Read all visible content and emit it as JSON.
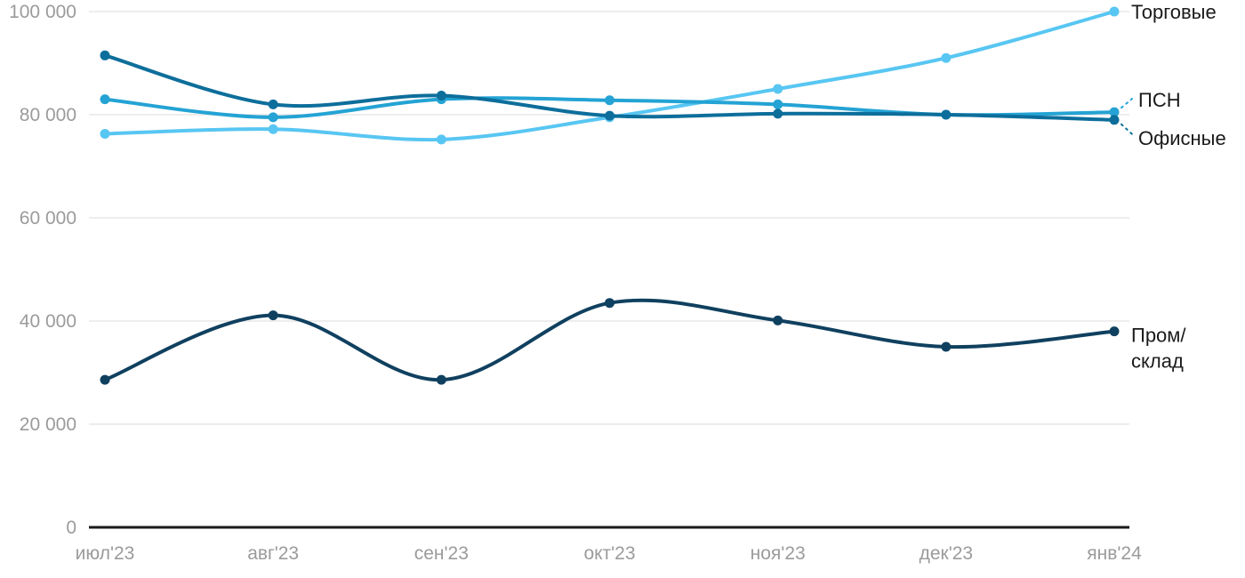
{
  "chart_data": {
    "type": "line",
    "title": "",
    "xlabel": "",
    "ylabel": "",
    "grid": "horizontal",
    "legend_position": "right-direct-labels",
    "categories": [
      "июл'23",
      "авг'23",
      "сен'23",
      "окт'23",
      "ноя'23",
      "дек'23",
      "янв'24"
    ],
    "y_ticks": [
      0,
      20000,
      40000,
      60000,
      80000,
      100000
    ],
    "y_tick_labels": [
      "0",
      "20 000",
      "40 000",
      "60 000",
      "80 000",
      "100 000"
    ],
    "ylim": [
      0,
      100000
    ],
    "series": [
      {
        "id": "prom-sklad",
        "name": "Пром/склад",
        "label_lines": [
          "Пром/",
          "склад"
        ],
        "color": "#10405f",
        "values": [
          28600,
          41100,
          28600,
          43500,
          40100,
          35000,
          38000
        ],
        "leader": false
      },
      {
        "id": "torgovye",
        "name": "Торговые",
        "label_lines": [
          "Торговые"
        ],
        "color": "#58c6f2",
        "values": [
          76300,
          77200,
          75200,
          79500,
          85000,
          91000,
          100000
        ],
        "leader": false
      },
      {
        "id": "psn",
        "name": "ПСН",
        "label_lines": [
          "ПСН"
        ],
        "color": "#24a3d4",
        "values": [
          83000,
          79500,
          83000,
          82800,
          82000,
          80000,
          80500
        ],
        "leader": true
      },
      {
        "id": "ofisnye",
        "name": "Офисные",
        "label_lines": [
          "Офисные"
        ],
        "color": "#0d6e9b",
        "values": [
          91500,
          82000,
          83700,
          79800,
          80200,
          80000,
          79000
        ],
        "leader": true
      }
    ],
    "colors": {
      "grid": "#e7e7e7",
      "axis_line": "#1a1a1a",
      "tick_text": "#9b9b9b",
      "label_text": "#1a1a1a",
      "background": "#ffffff"
    }
  }
}
